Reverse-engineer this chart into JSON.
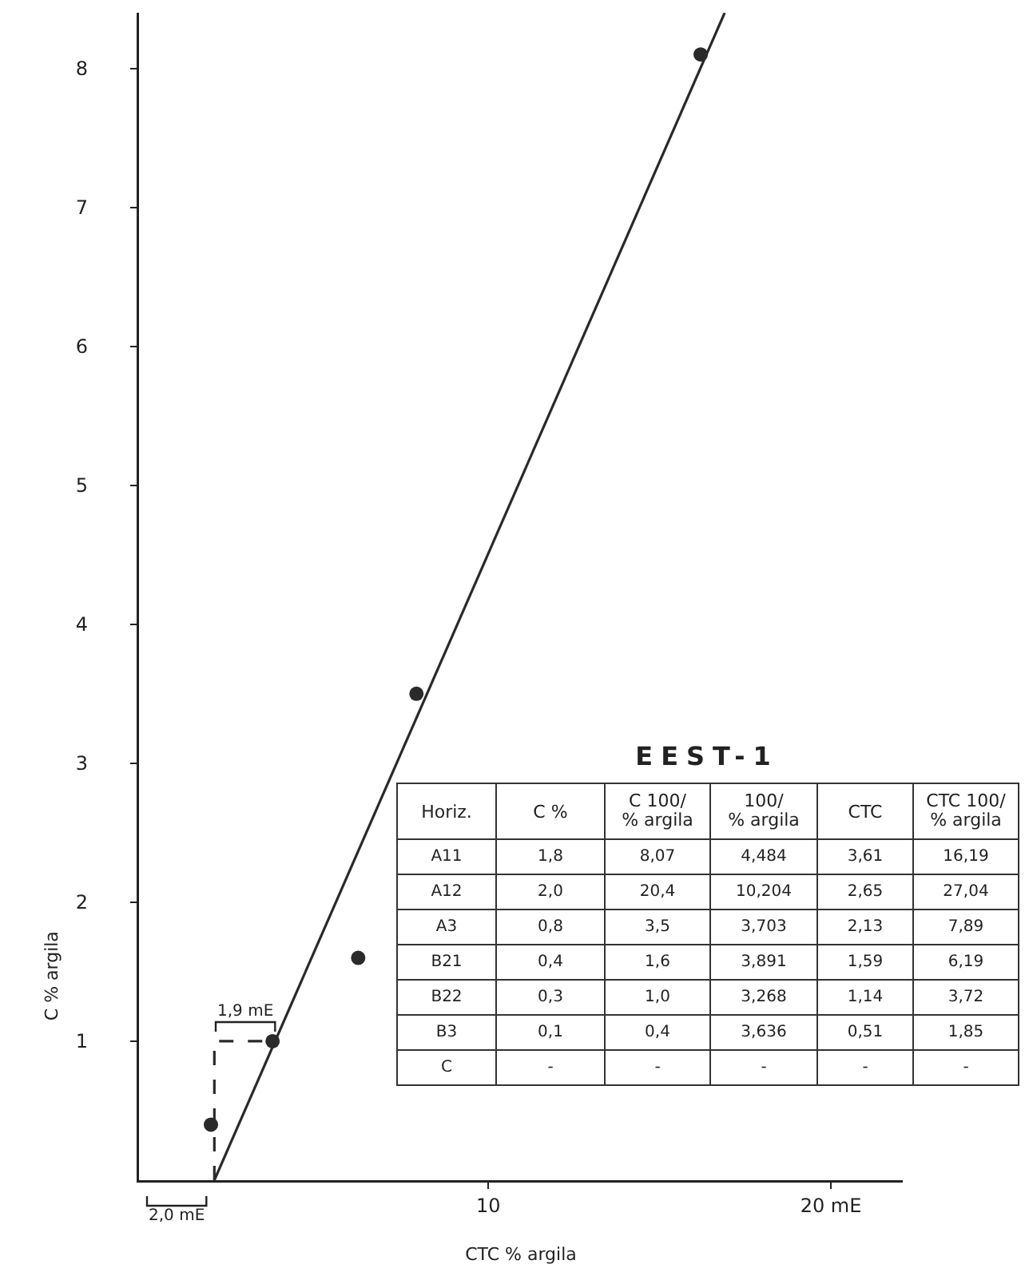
{
  "chart_data": [
    {
      "type": "scatter",
      "xlabel": "CTC % argila",
      "ylabel": "C % argila",
      "xlim": [
        -0.2,
        22.1
      ],
      "ylim": [
        0,
        8.4
      ],
      "xticks": [
        10,
        {
          "value": 20,
          "label": "20 mE"
        }
      ],
      "yticks": [
        1,
        2,
        3,
        4,
        5,
        6,
        7,
        8
      ],
      "series": [
        {
          "type": "scatter",
          "color": "#2a2a2a",
          "marker": "circle",
          "x": [
            16.2,
            7.9,
            6.2,
            3.7,
            1.9
          ],
          "values": [
            8.1,
            3.5,
            1.6,
            1.0,
            0.4
          ]
        },
        {
          "type": "line",
          "color": "#2a2a2a",
          "x": [
            2.0,
            16.9
          ],
          "values": [
            0,
            8.4
          ]
        },
        {
          "type": "line",
          "color": "#2a2a2a",
          "line_style": "dashed",
          "x": [
            2.0,
            2.0,
            3.8
          ],
          "values": [
            0,
            1,
            1
          ]
        }
      ],
      "annotations": [
        {
          "text": "1,9 mE",
          "x": 2.9,
          "y": 1
        },
        "2,0 mE"
      ]
    },
    {
      "type": "other",
      "title": "EEST-1",
      "ylabel": "Horiz.",
      "categories": [
        "C %",
        "C 100/% argila",
        "100/% argila",
        "CTC",
        "CTC 100/% argila"
      ],
      "y_categories": [
        "A11",
        "A12",
        "A3",
        "B21",
        "B22",
        "B3",
        "C"
      ],
      "cell_labels": [
        [
          "1,8",
          "8,07",
          "4,484",
          "3,61",
          "16,19"
        ],
        [
          "2,0",
          "20,4",
          "10,204",
          "2,65",
          "27,04"
        ],
        [
          "0,8",
          "3,5",
          "3,703",
          "2,13",
          "7,89"
        ],
        [
          "0,4",
          "1,6",
          "3,891",
          "1,59",
          "6,19"
        ],
        [
          "0,3",
          "1,0",
          "3,268",
          "1,14",
          "3,72"
        ],
        [
          "0,1",
          "0,4",
          "3,636",
          "0,51",
          "1,85"
        ],
        [
          "-",
          "-",
          "-",
          "-",
          "-"
        ]
      ]
    }
  ]
}
